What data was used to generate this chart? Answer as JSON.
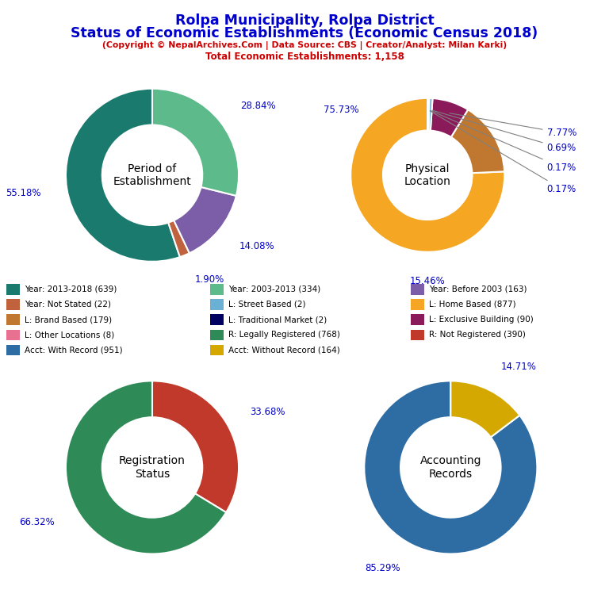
{
  "title_line1": "Rolpa Municipality, Rolpa District",
  "title_line2": "Status of Economic Establishments (Economic Census 2018)",
  "subtitle": "(Copyright © NepalArchives.Com | Data Source: CBS | Creator/Analyst: Milan Karki)",
  "total_line": "Total Economic Establishments: 1,158",
  "title_color": "#0000cc",
  "subtitle_color": "#cc0000",
  "chart1_label": "Period of\nEstablishment",
  "chart1_values": [
    55.18,
    1.9,
    14.08,
    28.84
  ],
  "chart1_colors": [
    "#1a7a6e",
    "#c0623d",
    "#7b5ea7",
    "#5dba8a"
  ],
  "chart1_pct_labels": [
    "55.18%",
    "1.90%",
    "14.08%",
    "28.84%"
  ],
  "chart1_startangle": 90,
  "chart2_label": "Physical\nLocation",
  "chart2_values": [
    75.73,
    15.46,
    7.77,
    0.69,
    0.17,
    0.17
  ],
  "chart2_colors": [
    "#f5a623",
    "#c07830",
    "#8b1a5a",
    "#6ab0d4",
    "#000060",
    "#f5a623"
  ],
  "chart2_pct_labels": [
    "75.73%",
    "15.46%",
    "7.77%",
    "0.69%",
    "0.17%",
    "0.17%"
  ],
  "chart2_startangle": 90,
  "chart3_label": "Registration\nStatus",
  "chart3_values": [
    66.32,
    33.68
  ],
  "chart3_colors": [
    "#2e8b57",
    "#c0392b"
  ],
  "chart3_pct_labels": [
    "66.32%",
    "33.68%"
  ],
  "chart3_startangle": 90,
  "chart4_label": "Accounting\nRecords",
  "chart4_values": [
    85.29,
    14.71
  ],
  "chart4_colors": [
    "#2e6da4",
    "#d4a800"
  ],
  "chart4_pct_labels": [
    "85.29%",
    "14.71%"
  ],
  "chart4_startangle": 90,
  "legend_items": [
    {
      "label": "Year: 2013-2018 (639)",
      "color": "#1a7a6e"
    },
    {
      "label": "Year: 2003-2013 (334)",
      "color": "#5dba8a"
    },
    {
      "label": "Year: Before 2003 (163)",
      "color": "#7b5ea7"
    },
    {
      "label": "Year: Not Stated (22)",
      "color": "#c0623d"
    },
    {
      "label": "L: Street Based (2)",
      "color": "#6ab0d4"
    },
    {
      "label": "L: Home Based (877)",
      "color": "#f5a623"
    },
    {
      "label": "L: Brand Based (179)",
      "color": "#c07830"
    },
    {
      "label": "L: Traditional Market (2)",
      "color": "#000060"
    },
    {
      "label": "L: Exclusive Building (90)",
      "color": "#8b1a5a"
    },
    {
      "label": "L: Other Locations (8)",
      "color": "#e87090"
    },
    {
      "label": "R: Legally Registered (768)",
      "color": "#2e8b57"
    },
    {
      "label": "R: Not Registered (390)",
      "color": "#c0392b"
    },
    {
      "label": "Acct: With Record (951)",
      "color": "#2e6da4"
    },
    {
      "label": "Acct: Without Record (164)",
      "color": "#d4a800"
    }
  ],
  "pct_label_color": "#0000cc",
  "background_color": "#ffffff"
}
